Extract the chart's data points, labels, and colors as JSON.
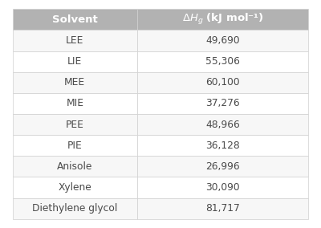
{
  "header": [
    "Solvent",
    "ΔH₉ (kJ mol⁻¹)"
  ],
  "rows": [
    [
      "LEE",
      "49,690"
    ],
    [
      "LIE",
      "55,306"
    ],
    [
      "MEE",
      "60,100"
    ],
    [
      "MIE",
      "37,276"
    ],
    [
      "PEE",
      "48,966"
    ],
    [
      "PIE",
      "36,128"
    ],
    [
      "Anisole",
      "26,996"
    ],
    [
      "Xylene",
      "30,090"
    ],
    [
      "Diethylene glycol",
      "81,717"
    ]
  ],
  "header_bg": "#b2b2b2",
  "header_text_color": "#ffffff",
  "row_bg_odd": "#f7f7f7",
  "row_bg_even": "#ffffff",
  "cell_text_color": "#4a4a4a",
  "border_color": "#d0d0d0",
  "fig_bg": "#ffffff",
  "col_split": 0.42,
  "header_fontsize": 9.5,
  "cell_fontsize": 8.8
}
